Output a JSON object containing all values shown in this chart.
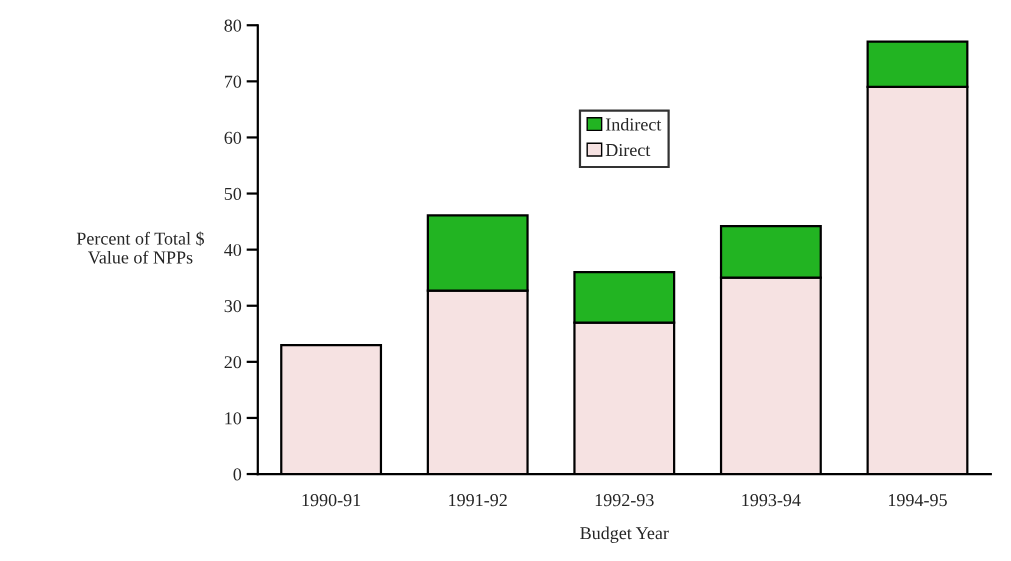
{
  "chart_data": {
    "type": "bar",
    "stacked": true,
    "xlabel": "Budget Year",
    "ylabel": "Percent of Total $\nValue of NPPs",
    "categories": [
      "1990-91",
      "1991-92",
      "1992-93",
      "1993-94",
      "1994-95"
    ],
    "series": [
      {
        "name": "Direct",
        "color": "#f6e2e2",
        "values": [
          23,
          32.7,
          27,
          35,
          69
        ]
      },
      {
        "name": "Indirect",
        "color": "#22b422",
        "values": [
          null,
          13.4,
          9,
          9.2,
          8.1
        ]
      }
    ],
    "ylim": [
      0,
      80
    ],
    "yticks": [
      0,
      10,
      20,
      30,
      40,
      50,
      60,
      70,
      80
    ],
    "grid": false,
    "legend": "top"
  }
}
